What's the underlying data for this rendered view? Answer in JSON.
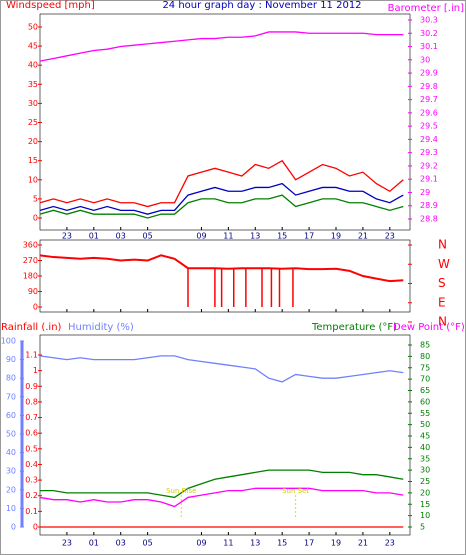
{
  "chart_data": [
    {
      "type": "line",
      "title": "24 hour graph day : November 11 2012",
      "ylabel": "Windspeed [mph]",
      "y2label": "Barometer [.in]",
      "xlim": [
        -3,
        24.5
      ],
      "xticks": [
        {
          "value": -1,
          "label": "23"
        },
        {
          "value": 1,
          "label": "01"
        },
        {
          "value": 3,
          "label": "03"
        },
        {
          "value": 5,
          "label": "05"
        },
        {
          "value": 9,
          "label": "09"
        },
        11,
        13,
        15,
        17,
        19,
        21,
        23
      ],
      "ylim": [
        0,
        50
      ],
      "yticks": [
        0,
        5,
        10,
        15,
        20,
        25,
        30,
        35,
        40,
        45,
        50
      ],
      "y2lim": [
        28.8,
        30.3
      ],
      "y2ticks": [
        28.8,
        28.9,
        29,
        29.1,
        29.2,
        29.3,
        29.4,
        29.5,
        29.6,
        29.7,
        29.8,
        29.9,
        30,
        30.1,
        30.2,
        30.3
      ],
      "x": [
        -3,
        -2,
        -1,
        0,
        1,
        2,
        3,
        4,
        5,
        6,
        7,
        8,
        9,
        10,
        11,
        12,
        13,
        14,
        15,
        16,
        17,
        18,
        19,
        20,
        21,
        22,
        23,
        24
      ],
      "series": [
        {
          "color": "#ff0000",
          "values": [
            4,
            5,
            4,
            5,
            4,
            5,
            4,
            4,
            3,
            4,
            4,
            11,
            12,
            13,
            12,
            11,
            14,
            13,
            15,
            10,
            12,
            14,
            13,
            11,
            12,
            9,
            7,
            10
          ]
        },
        {
          "color": "#0000c0",
          "values": [
            2,
            3,
            2,
            3,
            2,
            3,
            2,
            2,
            1,
            2,
            2,
            6,
            7,
            8,
            7,
            7,
            8,
            8,
            9,
            6,
            7,
            8,
            8,
            7,
            7,
            5,
            4,
            6
          ]
        },
        {
          "color": "#008000",
          "values": [
            1,
            2,
            1,
            2,
            1,
            1,
            1,
            1,
            0,
            1,
            1,
            4,
            5,
            5,
            4,
            4,
            5,
            5,
            6,
            3,
            4,
            5,
            5,
            4,
            4,
            3,
            2,
            3
          ]
        },
        {
          "color": "#ff00ff",
          "axis": "y2",
          "values": [
            29.99,
            30.01,
            30.03,
            30.05,
            30.07,
            30.08,
            30.1,
            30.11,
            30.12,
            30.13,
            30.14,
            30.15,
            30.16,
            30.16,
            30.17,
            30.17,
            30.18,
            30.21,
            30.21,
            30.21,
            30.2,
            30.2,
            30.2,
            30.2,
            30.2,
            30.19,
            30.19,
            30.19
          ]
        }
      ]
    },
    {
      "type": "line",
      "xlim": [
        -3,
        24.5
      ],
      "ylim": [
        0,
        360
      ],
      "yticks": [
        0,
        90,
        180,
        270,
        360
      ],
      "y2lim": [
        0,
        360
      ],
      "y2ticks": [
        {
          "value": 0,
          "label": "N"
        },
        {
          "value": 90,
          "label": "E"
        },
        {
          "value": 180,
          "label": "S"
        },
        {
          "value": 270,
          "label": "W"
        },
        {
          "value": 360,
          "label": "N"
        }
      ],
      "x": [
        -3,
        -2,
        -1,
        0,
        1,
        2,
        3,
        4,
        5,
        6,
        7,
        8,
        9,
        10,
        11,
        12,
        13,
        14,
        15,
        16,
        17,
        18,
        19,
        20,
        21,
        22,
        23,
        24
      ],
      "series": [
        {
          "color": "#ff0000",
          "values": [
            300,
            290,
            285,
            280,
            285,
            280,
            270,
            275,
            270,
            300,
            280,
            225,
            225,
            225,
            222,
            225,
            225,
            225,
            222,
            225,
            220,
            220,
            222,
            210,
            180,
            165,
            150,
            155
          ]
        },
        {
          "color": "#ff0000",
          "kind": "drop",
          "x": [
            8,
            10,
            10.5,
            11.4,
            12.3,
            13.5,
            14.2,
            14.8,
            15.8
          ],
          "values": [
            0,
            0,
            0,
            0,
            0,
            0,
            0,
            0,
            0
          ]
        }
      ]
    },
    {
      "type": "line",
      "ylabel": "Rainfall (.in)",
      "y3label": "Humidity (%)",
      "y2label": "Temperature (°F)",
      "y2label_b": "Dew Point (°F)",
      "xlim": [
        -3,
        24.5
      ],
      "xticks": [
        {
          "value": -1,
          "label": "23"
        },
        {
          "value": 1,
          "label": "01"
        },
        {
          "value": 3,
          "label": "03"
        },
        {
          "value": 5,
          "label": "05"
        },
        {
          "value": 9,
          "label": "09"
        },
        11,
        13,
        15,
        17,
        19,
        21,
        23
      ],
      "ylim": [
        0,
        1.1
      ],
      "yticks": [
        0,
        0.1,
        0.2,
        0.3,
        0.4,
        0.5,
        0.6,
        0.7,
        0.8,
        0.9,
        1,
        1.1
      ],
      "y3lim": [
        0,
        100
      ],
      "y3ticks": [
        0,
        10,
        20,
        30,
        40,
        50,
        60,
        70,
        80,
        90,
        100
      ],
      "y2lim": [
        5,
        85
      ],
      "y2ticks": [
        5,
        10,
        15,
        20,
        25,
        30,
        35,
        40,
        45,
        50,
        55,
        60,
        65,
        70,
        75,
        80,
        85
      ],
      "x": [
        -3,
        -2,
        -1,
        0,
        1,
        2,
        3,
        4,
        5,
        6,
        7,
        8,
        9,
        10,
        11,
        12,
        13,
        14,
        15,
        16,
        17,
        18,
        19,
        20,
        21,
        22,
        23,
        24
      ],
      "series": [
        {
          "color": "#ff0000",
          "values": [
            0,
            0,
            0,
            0,
            0,
            0,
            0,
            0,
            0,
            0,
            0,
            0,
            0,
            0,
            0,
            0,
            0,
            0,
            0,
            0,
            0,
            0,
            0,
            0,
            0,
            0,
            0,
            0
          ]
        },
        {
          "color": "#7080ff",
          "axis": "y3",
          "values": [
            92,
            91,
            90,
            91,
            90,
            90,
            90,
            90,
            91,
            92,
            92,
            90,
            89,
            88,
            87,
            86,
            85,
            80,
            78,
            82,
            81,
            80,
            80,
            81,
            82,
            83,
            84,
            83
          ]
        },
        {
          "color": "#008000",
          "axis": "y2",
          "values": [
            21,
            21,
            20,
            20,
            20,
            20,
            20,
            20,
            20,
            19,
            18,
            22,
            24,
            26,
            27,
            28,
            29,
            30,
            30,
            30,
            30,
            29,
            29,
            29,
            28,
            28,
            27,
            26
          ]
        },
        {
          "color": "#ff00ff",
          "axis": "y2",
          "values": [
            18,
            17,
            17,
            16,
            17,
            16,
            16,
            17,
            17,
            16,
            14,
            18,
            19,
            20,
            21,
            21,
            22,
            22,
            22,
            22,
            22,
            21,
            21,
            21,
            21,
            20,
            20,
            19
          ]
        }
      ],
      "annotations": [
        {
          "x": 7.5,
          "text": "Sun Rise"
        },
        {
          "x": 16,
          "text": "Sun Set"
        }
      ]
    }
  ]
}
